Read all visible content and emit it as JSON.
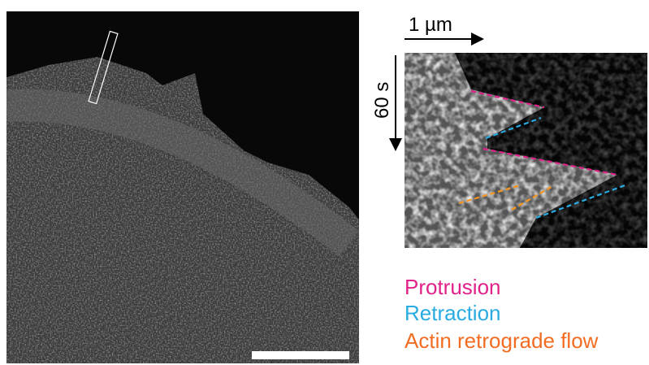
{
  "kymograph": {
    "x_scale": "1 µm",
    "time_scale": "60 s"
  },
  "legend": [
    {
      "label": "Protrusion"
    },
    {
      "label": "Retraction"
    },
    {
      "label": "Actin retrograde flow"
    }
  ]
}
